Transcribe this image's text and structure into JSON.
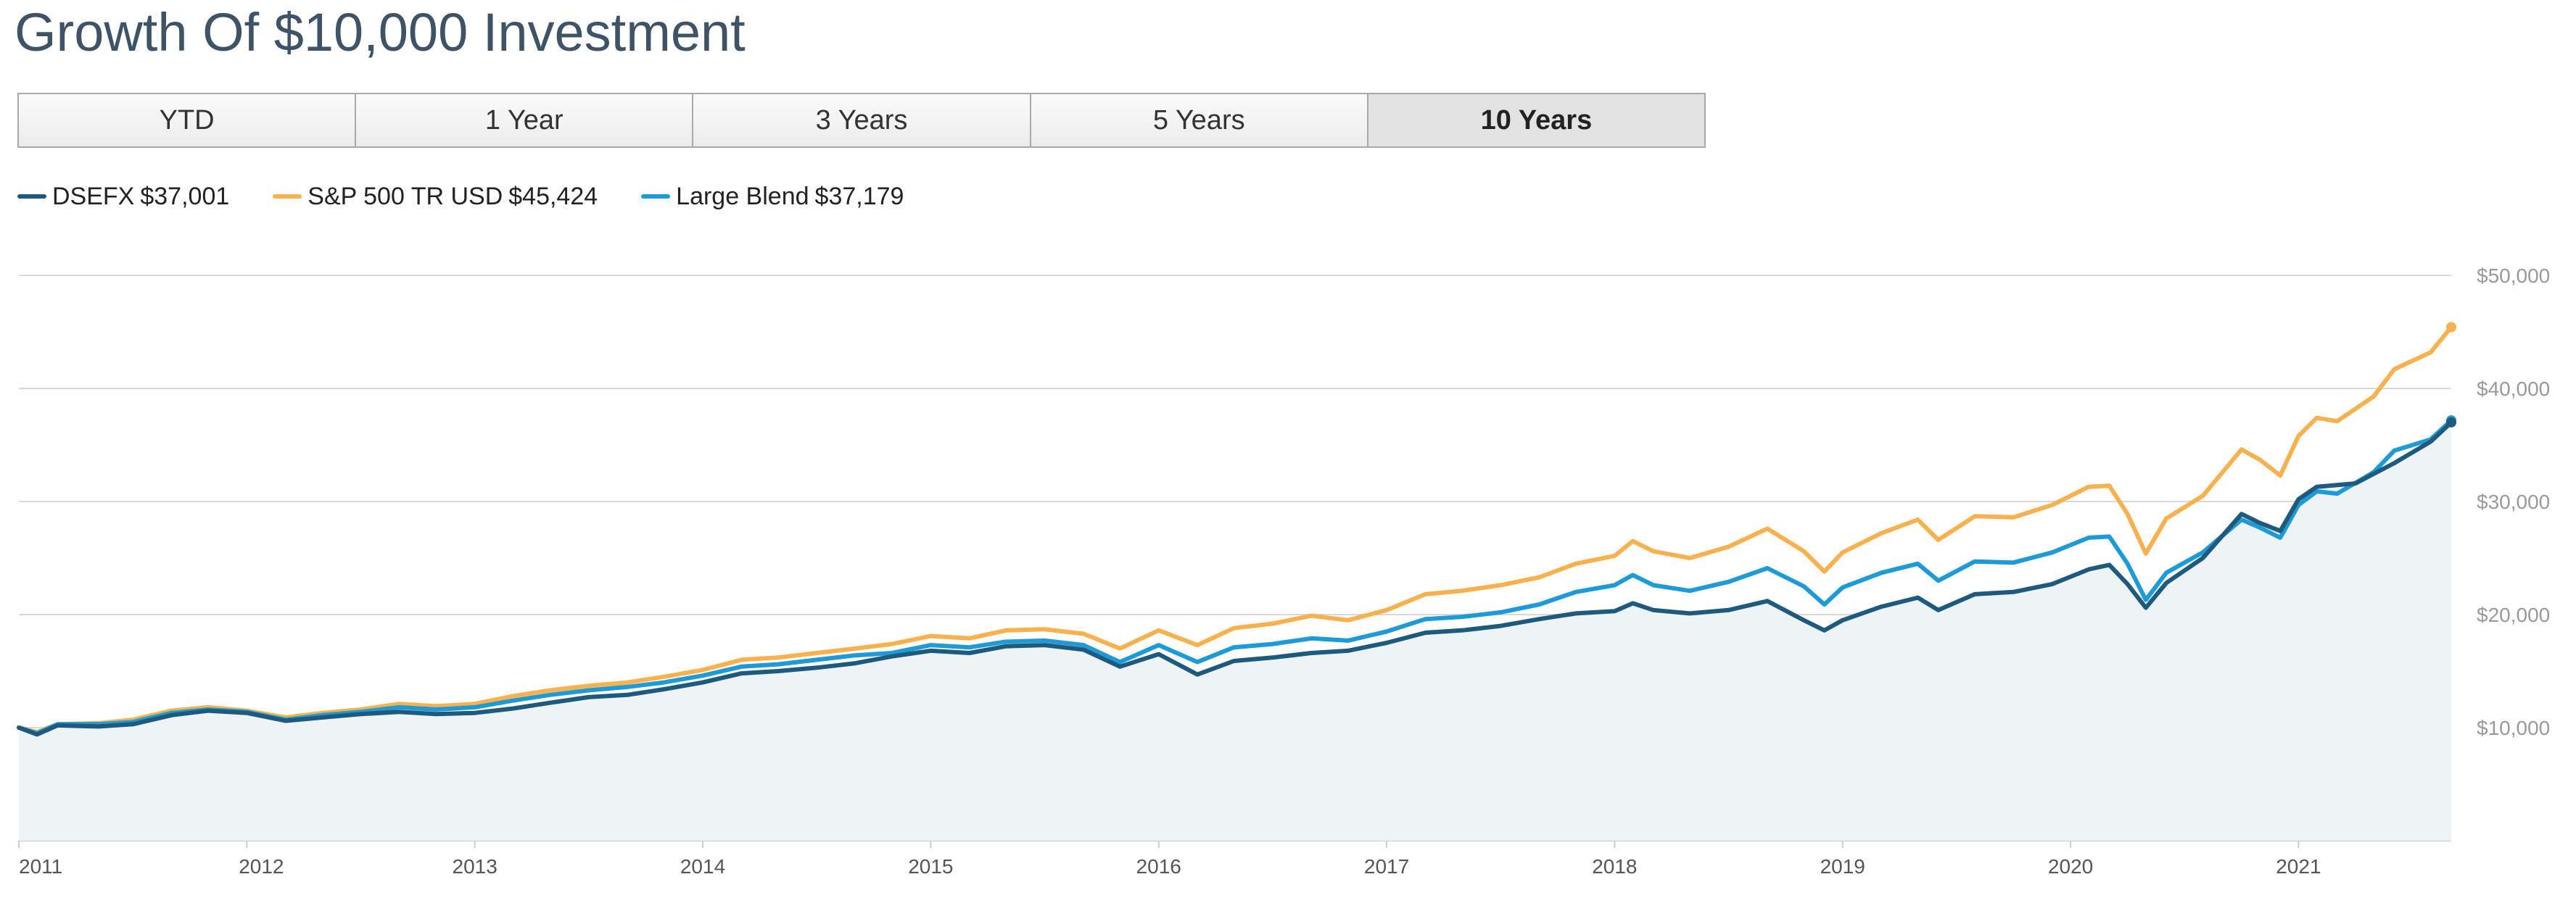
{
  "title": "Growth Of $10,000 Investment",
  "tabs": [
    {
      "label": "YTD",
      "active": false
    },
    {
      "label": "1 Year",
      "active": false
    },
    {
      "label": "3 Years",
      "active": false
    },
    {
      "label": "5 Years",
      "active": false
    },
    {
      "label": "10 Years",
      "active": true
    }
  ],
  "legend": [
    {
      "name": "DSEFX",
      "value": "$37,001",
      "color": "#1d5a7e"
    },
    {
      "name": "S&P 500 TR USD",
      "value": "$45,424",
      "color": "#f7b24f"
    },
    {
      "name": "Large Blend",
      "value": "$37,179",
      "color": "#1e9bd7"
    }
  ],
  "chart_data": {
    "type": "line",
    "title": "Growth Of $10,000 Investment",
    "xlabel": "",
    "ylabel": "",
    "xlim": [
      2011.0,
      2021.67
    ],
    "ylim": [
      0,
      50000
    ],
    "y_ticks": [
      10000,
      20000,
      30000,
      40000,
      50000
    ],
    "y_tick_labels": [
      "$10,000",
      "$20,000",
      "$30,000",
      "$40,000",
      "$50,000"
    ],
    "x_ticks": [
      2011,
      2012,
      2013,
      2014,
      2015,
      2016,
      2017,
      2018,
      2019,
      2020,
      2021
    ],
    "x_tick_labels": [
      "2011",
      "2012",
      "2013",
      "2014",
      "2015",
      "2016",
      "2017",
      "2018",
      "2019",
      "2020",
      "2021"
    ],
    "grid": true,
    "legend_position": "top-left",
    "area_fill_series": "DSEFX",
    "series": [
      {
        "name": "DSEFX",
        "color": "#1d5a7e",
        "points": [
          [
            2011.0,
            10000
          ],
          [
            2011.08,
            9400
          ],
          [
            2011.17,
            10200
          ],
          [
            2011.35,
            10100
          ],
          [
            2011.5,
            10300
          ],
          [
            2011.67,
            11100
          ],
          [
            2011.83,
            11500
          ],
          [
            2012.0,
            11300
          ],
          [
            2012.17,
            10600
          ],
          [
            2012.33,
            10900
          ],
          [
            2012.5,
            11200
          ],
          [
            2012.67,
            11400
          ],
          [
            2012.83,
            11200
          ],
          [
            2013.0,
            11300
          ],
          [
            2013.17,
            11700
          ],
          [
            2013.33,
            12200
          ],
          [
            2013.5,
            12700
          ],
          [
            2013.67,
            12900
          ],
          [
            2013.83,
            13400
          ],
          [
            2014.0,
            14000
          ],
          [
            2014.17,
            14800
          ],
          [
            2014.33,
            15000
          ],
          [
            2014.5,
            15300
          ],
          [
            2014.67,
            15700
          ],
          [
            2014.83,
            16300
          ],
          [
            2015.0,
            16800
          ],
          [
            2015.17,
            16600
          ],
          [
            2015.33,
            17200
          ],
          [
            2015.5,
            17300
          ],
          [
            2015.67,
            16900
          ],
          [
            2015.83,
            15400
          ],
          [
            2016.0,
            16500
          ],
          [
            2016.17,
            14700
          ],
          [
            2016.33,
            15900
          ],
          [
            2016.5,
            16200
          ],
          [
            2016.67,
            16600
          ],
          [
            2016.83,
            16800
          ],
          [
            2017.0,
            17500
          ],
          [
            2017.17,
            18400
          ],
          [
            2017.33,
            18600
          ],
          [
            2017.5,
            19000
          ],
          [
            2017.67,
            19600
          ],
          [
            2017.83,
            20100
          ],
          [
            2018.0,
            20300
          ],
          [
            2018.08,
            21000
          ],
          [
            2018.17,
            20400
          ],
          [
            2018.33,
            20100
          ],
          [
            2018.5,
            20400
          ],
          [
            2018.67,
            21200
          ],
          [
            2018.83,
            19500
          ],
          [
            2018.92,
            18600
          ],
          [
            2019.0,
            19500
          ],
          [
            2019.17,
            20700
          ],
          [
            2019.33,
            21500
          ],
          [
            2019.42,
            20400
          ],
          [
            2019.58,
            21800
          ],
          [
            2019.75,
            22000
          ],
          [
            2019.92,
            22700
          ],
          [
            2020.08,
            24000
          ],
          [
            2020.17,
            24400
          ],
          [
            2020.25,
            22700
          ],
          [
            2020.33,
            20600
          ],
          [
            2020.42,
            22800
          ],
          [
            2020.58,
            25000
          ],
          [
            2020.75,
            28900
          ],
          [
            2020.83,
            28100
          ],
          [
            2020.92,
            27400
          ],
          [
            2021.0,
            30200
          ],
          [
            2021.08,
            31300
          ],
          [
            2021.25,
            31600
          ],
          [
            2021.42,
            33400
          ],
          [
            2021.58,
            35300
          ],
          [
            2021.67,
            37001
          ]
        ]
      },
      {
        "name": "S&P 500 TR USD",
        "color": "#f7b24f",
        "points": [
          [
            2011.0,
            10000
          ],
          [
            2011.08,
            9600
          ],
          [
            2011.17,
            10300
          ],
          [
            2011.35,
            10400
          ],
          [
            2011.5,
            10700
          ],
          [
            2011.67,
            11500
          ],
          [
            2011.83,
            11800
          ],
          [
            2012.0,
            11500
          ],
          [
            2012.17,
            10900
          ],
          [
            2012.33,
            11300
          ],
          [
            2012.5,
            11600
          ],
          [
            2012.67,
            12100
          ],
          [
            2012.83,
            11900
          ],
          [
            2013.0,
            12100
          ],
          [
            2013.17,
            12800
          ],
          [
            2013.33,
            13300
          ],
          [
            2013.5,
            13700
          ],
          [
            2013.67,
            14000
          ],
          [
            2013.83,
            14500
          ],
          [
            2014.0,
            15100
          ],
          [
            2014.17,
            16000
          ],
          [
            2014.33,
            16200
          ],
          [
            2014.5,
            16600
          ],
          [
            2014.67,
            17000
          ],
          [
            2014.83,
            17400
          ],
          [
            2015.0,
            18100
          ],
          [
            2015.17,
            17900
          ],
          [
            2015.33,
            18600
          ],
          [
            2015.5,
            18700
          ],
          [
            2015.67,
            18300
          ],
          [
            2015.83,
            17000
          ],
          [
            2016.0,
            18600
          ],
          [
            2016.17,
            17300
          ],
          [
            2016.33,
            18800
          ],
          [
            2016.5,
            19200
          ],
          [
            2016.67,
            19900
          ],
          [
            2016.83,
            19500
          ],
          [
            2017.0,
            20400
          ],
          [
            2017.17,
            21800
          ],
          [
            2017.33,
            22100
          ],
          [
            2017.5,
            22600
          ],
          [
            2017.67,
            23300
          ],
          [
            2017.83,
            24500
          ],
          [
            2018.0,
            25200
          ],
          [
            2018.08,
            26500
          ],
          [
            2018.17,
            25600
          ],
          [
            2018.33,
            25000
          ],
          [
            2018.5,
            26000
          ],
          [
            2018.67,
            27600
          ],
          [
            2018.83,
            25600
          ],
          [
            2018.92,
            23800
          ],
          [
            2019.0,
            25500
          ],
          [
            2019.17,
            27200
          ],
          [
            2019.33,
            28400
          ],
          [
            2019.42,
            26600
          ],
          [
            2019.58,
            28700
          ],
          [
            2019.75,
            28600
          ],
          [
            2019.92,
            29700
          ],
          [
            2020.08,
            31300
          ],
          [
            2020.17,
            31400
          ],
          [
            2020.25,
            28900
          ],
          [
            2020.33,
            25400
          ],
          [
            2020.42,
            28500
          ],
          [
            2020.58,
            30500
          ],
          [
            2020.75,
            34600
          ],
          [
            2020.83,
            33700
          ],
          [
            2020.92,
            32300
          ],
          [
            2021.0,
            35800
          ],
          [
            2021.08,
            37400
          ],
          [
            2021.17,
            37100
          ],
          [
            2021.33,
            39300
          ],
          [
            2021.42,
            41700
          ],
          [
            2021.58,
            43200
          ],
          [
            2021.67,
            45424
          ]
        ]
      },
      {
        "name": "Large Blend",
        "color": "#1e9bd7",
        "points": [
          [
            2011.0,
            10000
          ],
          [
            2011.08,
            9500
          ],
          [
            2011.17,
            10300
          ],
          [
            2011.35,
            10300
          ],
          [
            2011.5,
            10500
          ],
          [
            2011.67,
            11300
          ],
          [
            2011.83,
            11600
          ],
          [
            2012.0,
            11400
          ],
          [
            2012.17,
            10700
          ],
          [
            2012.33,
            11100
          ],
          [
            2012.5,
            11400
          ],
          [
            2012.67,
            11800
          ],
          [
            2012.83,
            11600
          ],
          [
            2013.0,
            11800
          ],
          [
            2013.17,
            12400
          ],
          [
            2013.33,
            12900
          ],
          [
            2013.5,
            13300
          ],
          [
            2013.67,
            13600
          ],
          [
            2013.83,
            14000
          ],
          [
            2014.0,
            14600
          ],
          [
            2014.17,
            15400
          ],
          [
            2014.33,
            15600
          ],
          [
            2014.5,
            16000
          ],
          [
            2014.67,
            16400
          ],
          [
            2014.83,
            16600
          ],
          [
            2015.0,
            17300
          ],
          [
            2015.17,
            17100
          ],
          [
            2015.33,
            17600
          ],
          [
            2015.5,
            17700
          ],
          [
            2015.67,
            17300
          ],
          [
            2015.83,
            15800
          ],
          [
            2016.0,
            17300
          ],
          [
            2016.17,
            15800
          ],
          [
            2016.33,
            17100
          ],
          [
            2016.5,
            17400
          ],
          [
            2016.67,
            17900
          ],
          [
            2016.83,
            17700
          ],
          [
            2017.0,
            18500
          ],
          [
            2017.17,
            19600
          ],
          [
            2017.33,
            19800
          ],
          [
            2017.5,
            20200
          ],
          [
            2017.67,
            20900
          ],
          [
            2017.83,
            22000
          ],
          [
            2018.0,
            22600
          ],
          [
            2018.08,
            23500
          ],
          [
            2018.17,
            22600
          ],
          [
            2018.33,
            22100
          ],
          [
            2018.5,
            22900
          ],
          [
            2018.67,
            24100
          ],
          [
            2018.83,
            22500
          ],
          [
            2018.92,
            20900
          ],
          [
            2019.0,
            22400
          ],
          [
            2019.17,
            23700
          ],
          [
            2019.33,
            24500
          ],
          [
            2019.42,
            23000
          ],
          [
            2019.58,
            24700
          ],
          [
            2019.75,
            24600
          ],
          [
            2019.92,
            25500
          ],
          [
            2020.08,
            26800
          ],
          [
            2020.17,
            26900
          ],
          [
            2020.25,
            24500
          ],
          [
            2020.33,
            21300
          ],
          [
            2020.42,
            23700
          ],
          [
            2020.58,
            25500
          ],
          [
            2020.75,
            28400
          ],
          [
            2020.83,
            27700
          ],
          [
            2020.92,
            26800
          ],
          [
            2021.0,
            29700
          ],
          [
            2021.08,
            30900
          ],
          [
            2021.17,
            30700
          ],
          [
            2021.33,
            32600
          ],
          [
            2021.42,
            34500
          ],
          [
            2021.58,
            35500
          ],
          [
            2021.67,
            37179
          ]
        ]
      }
    ]
  }
}
